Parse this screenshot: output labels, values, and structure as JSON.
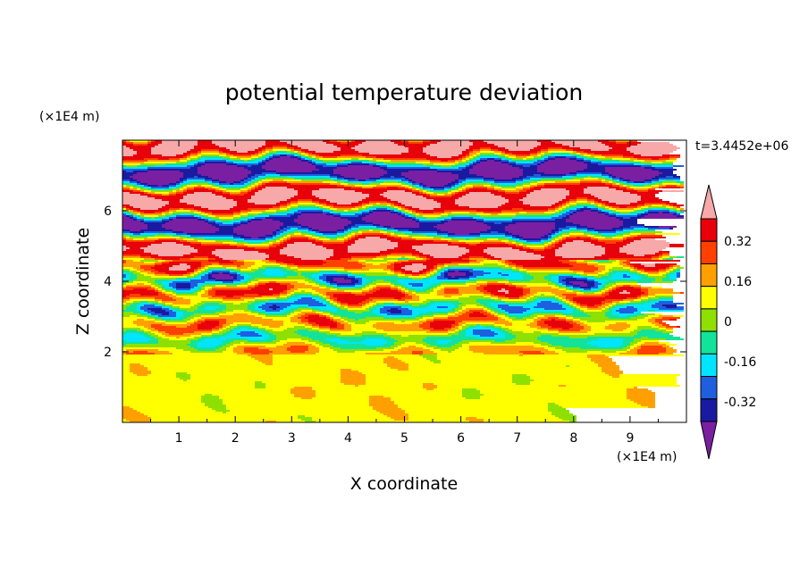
{
  "chart_data": {
    "type": "heatmap",
    "title": "potential temperature deviation",
    "xlabel": "X coordinate",
    "ylabel": "Z coordinate",
    "x_unit": "(×1E4 m)",
    "y_unit": "(×1E4 m)",
    "time_label": "t=3.4452e+06",
    "xlim": [
      0,
      10
    ],
    "ylim": [
      0,
      8
    ],
    "x_ticks": [
      "1",
      "2",
      "3",
      "4",
      "5",
      "6",
      "7",
      "8",
      "9"
    ],
    "y_ticks": [
      "2",
      "4",
      "6"
    ],
    "colorbar": {
      "labels": [
        "0.32",
        "0.16",
        "0",
        "-0.16",
        "-0.32"
      ],
      "levels": [
        -0.4,
        -0.32,
        -0.24,
        -0.16,
        -0.08,
        0,
        0.08,
        0.16,
        0.24,
        0.32,
        0.4
      ],
      "colors": [
        "#7a1fa2",
        "#1a1aa0",
        "#1e5fe0",
        "#00e5ff",
        "#12e39a",
        "#8ee000",
        "#ffff00",
        "#ffa000",
        "#ff4000",
        "#e8000a",
        "#f7a8a8"
      ]
    },
    "regions": [
      {
        "z_range": [
          0,
          1.9
        ],
        "dominant_level": 0.04,
        "description_color": "#8ee000"
      },
      {
        "z_range": [
          1.9,
          4.5
        ],
        "dominant_level": "mixed"
      },
      {
        "z_range": [
          4.5,
          8
        ],
        "dominant_level": "alternating -0.4 / 0.4"
      }
    ]
  }
}
